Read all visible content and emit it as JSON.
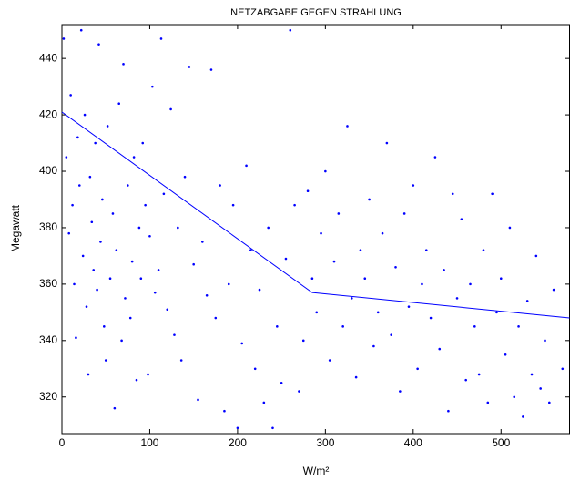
{
  "chart_data": {
    "type": "scatter",
    "title": "NETZABGABE GEGEN STRAHLUNG",
    "xlabel": "W/m²",
    "ylabel": "Megawatt",
    "color": "#0000ff",
    "xlim": [
      0,
      578
    ],
    "ylim": [
      307,
      452
    ],
    "xticks": [
      0,
      100,
      200,
      300,
      400,
      500
    ],
    "yticks": [
      320,
      340,
      360,
      380,
      400,
      420,
      440
    ],
    "x": [
      2,
      5,
      8,
      10,
      12,
      14,
      16,
      18,
      20,
      22,
      24,
      26,
      28,
      30,
      32,
      34,
      36,
      38,
      40,
      42,
      44,
      46,
      48,
      50,
      52,
      55,
      58,
      60,
      62,
      65,
      68,
      70,
      72,
      75,
      78,
      80,
      82,
      85,
      88,
      90,
      92,
      95,
      98,
      100,
      103,
      106,
      110,
      113,
      116,
      120,
      124,
      128,
      132,
      136,
      140,
      145,
      150,
      155,
      160,
      165,
      170,
      175,
      180,
      185,
      190,
      195,
      200,
      205,
      210,
      215,
      220,
      225,
      230,
      235,
      240,
      245,
      250,
      255,
      260,
      265,
      270,
      275,
      280,
      285,
      290,
      295,
      300,
      305,
      310,
      315,
      320,
      325,
      330,
      335,
      340,
      345,
      350,
      355,
      360,
      365,
      370,
      375,
      380,
      385,
      390,
      395,
      400,
      405,
      410,
      415,
      420,
      425,
      430,
      435,
      440,
      445,
      450,
      455,
      460,
      465,
      470,
      475,
      480,
      485,
      490,
      495,
      500,
      505,
      510,
      515,
      520,
      525,
      530,
      535,
      540,
      545,
      550,
      555,
      560,
      570
    ],
    "values": [
      447,
      405,
      378,
      427,
      388,
      360,
      341,
      412,
      395,
      450,
      370,
      420,
      352,
      328,
      398,
      382,
      365,
      410,
      358,
      445,
      375,
      390,
      345,
      333,
      416,
      362,
      385,
      316,
      372,
      424,
      340,
      438,
      355,
      395,
      348,
      368,
      405,
      326,
      380,
      362,
      410,
      388,
      328,
      377,
      430,
      357,
      365,
      447,
      392,
      351,
      422,
      342,
      380,
      333,
      398,
      437,
      367,
      319,
      375,
      356,
      436,
      348,
      395,
      315,
      360,
      388,
      309,
      339,
      402,
      372,
      330,
      358,
      318,
      380,
      309,
      345,
      325,
      369,
      450,
      388,
      322,
      340,
      393,
      362,
      350,
      378,
      400,
      333,
      368,
      385,
      345,
      416,
      355,
      327,
      372,
      362,
      390,
      338,
      350,
      378,
      410,
      342,
      366,
      322,
      385,
      352,
      395,
      330,
      360,
      372,
      348,
      405,
      337,
      365,
      315,
      392,
      355,
      383,
      326,
      360,
      345,
      328,
      372,
      318,
      392,
      350,
      362,
      335,
      380,
      320,
      345,
      313,
      354,
      328,
      370,
      323,
      340,
      318,
      358,
      330
    ],
    "fit": {
      "x": [
        0,
        285,
        578
      ],
      "values": [
        421,
        357,
        348
      ]
    }
  }
}
